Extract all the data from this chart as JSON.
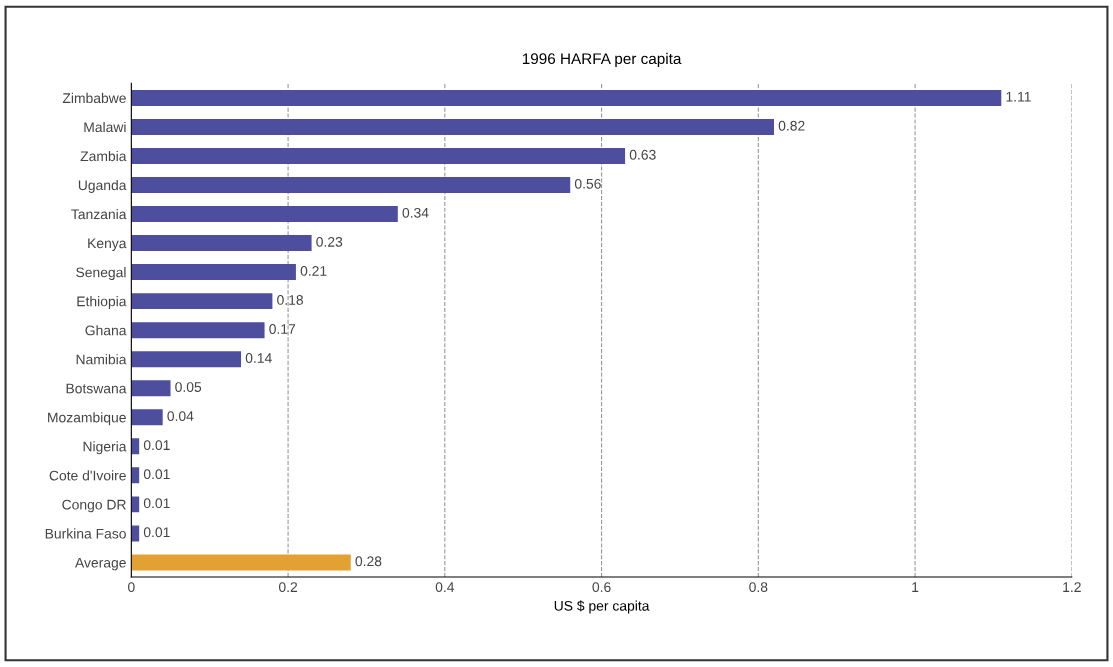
{
  "chart_data": {
    "type": "bar",
    "orientation": "horizontal",
    "title": "1996 HARFA per capita",
    "xlabel": "US $ per capita",
    "categories": [
      "Zimbabwe",
      "Malawi",
      "Zambia",
      "Uganda",
      "Tanzania",
      "Kenya",
      "Senegal",
      "Ethiopia",
      "Ghana",
      "Namibia",
      "Botswana",
      "Mozambique",
      "Nigeria",
      "Cote d'Ivoire",
      "Congo DR",
      "Burkina Faso",
      "Average"
    ],
    "values": [
      1.11,
      0.82,
      0.63,
      0.56,
      0.34,
      0.23,
      0.21,
      0.18,
      0.17,
      0.14,
      0.05,
      0.04,
      0.01,
      0.01,
      0.01,
      0.01,
      0.28
    ],
    "colors": [
      "#4d4f9e",
      "#4d4f9e",
      "#4d4f9e",
      "#4d4f9e",
      "#4d4f9e",
      "#4d4f9e",
      "#4d4f9e",
      "#4d4f9e",
      "#4d4f9e",
      "#4d4f9e",
      "#4d4f9e",
      "#4d4f9e",
      "#4d4f9e",
      "#4d4f9e",
      "#4d4f9e",
      "#4d4f9e",
      "#e2a132"
    ],
    "xlim": [
      0,
      1.2
    ],
    "xticks": [
      0,
      0.2,
      0.4,
      0.6,
      0.8,
      1,
      1.2
    ],
    "grid": "x",
    "data_labels": true
  }
}
